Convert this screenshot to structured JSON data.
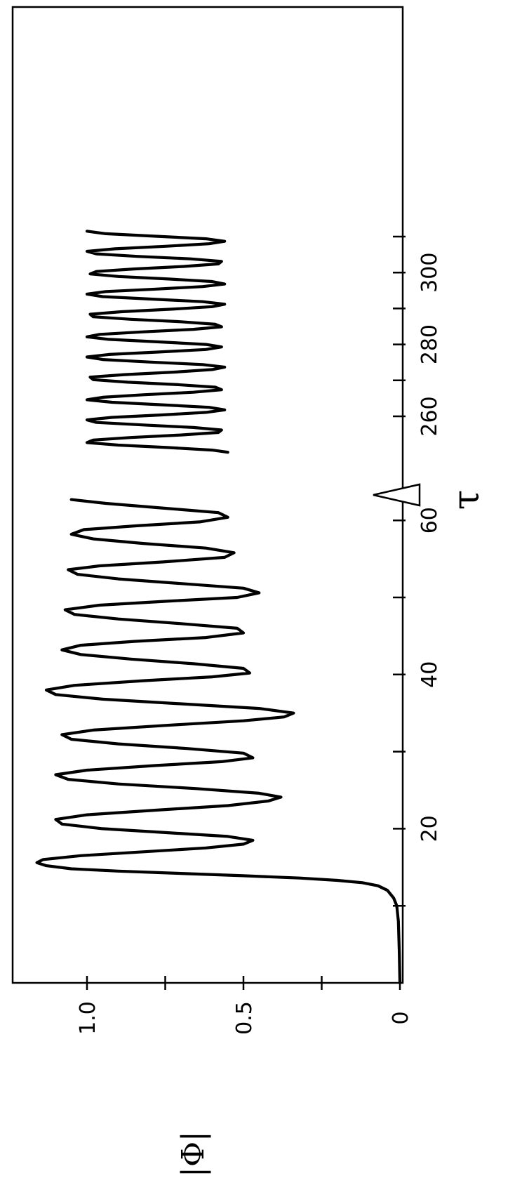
{
  "chart_data": {
    "type": "line",
    "orientation": "rotated-90-ccw",
    "xlabel": "τ",
    "ylabel": "|Φ|",
    "axis_break_marker": "break-triangle",
    "segments": [
      {
        "xlim": [
          0,
          64
        ],
        "ticks": [
          10,
          20,
          30,
          40,
          50,
          60
        ],
        "tick_labels": [
          "20",
          "40",
          "60"
        ],
        "labeled_ticks": [
          20,
          40,
          60
        ]
      },
      {
        "xlim": [
          250,
          312
        ],
        "ticks": [
          260,
          270,
          280,
          290,
          300,
          310
        ],
        "tick_labels": [
          "260",
          "280",
          "300"
        ],
        "labeled_ticks": [
          260,
          280,
          300
        ]
      }
    ],
    "ylim": [
      0,
      1.24
    ],
    "yticks": [
      0,
      0.25,
      0.5,
      0.75,
      1.0
    ],
    "ytick_labels": [
      "0",
      "0.5",
      "1.0"
    ],
    "ylabeled_ticks": [
      0,
      0.5,
      1.0
    ],
    "series": [
      {
        "segment": 0,
        "x": [
          0,
          4,
          8,
          10,
          11,
          12,
          12.6,
          13,
          13.3,
          13.6,
          13.9,
          14.2,
          14.5,
          14.8,
          15.2,
          15.6,
          16.0,
          16.5,
          17.0,
          17.5,
          18.0,
          18.5,
          19.0,
          19.5,
          20.0,
          20.6,
          21.2,
          21.8,
          22.4,
          23.0,
          23.6,
          24.1,
          24.6,
          25.2,
          25.8,
          26.4,
          27.0,
          27.6,
          28.2,
          28.7,
          29.2,
          29.8,
          30.4,
          31.0,
          31.6,
          32.2,
          32.8,
          33.4,
          34.0,
          34.5,
          35.0,
          35.6,
          36.2,
          36.8,
          37.4,
          38.0,
          38.6,
          39.2,
          39.7,
          40.2,
          40.8,
          41.4,
          42.0,
          42.6,
          43.2,
          43.8,
          44.3,
          44.8,
          45.4,
          46.0,
          46.6,
          47.2,
          47.8,
          48.4,
          49.0,
          49.5,
          50.0,
          50.6,
          51.2,
          51.8,
          52.4,
          53.0,
          53.6,
          54.1,
          54.6,
          55.2,
          55.8,
          56.4,
          57.0,
          57.6,
          58.2,
          58.8,
          59.3,
          59.8,
          60.4,
          61.0,
          61.6,
          62.2,
          62.7
        ],
        "y": [
          0.0,
          0.002,
          0.005,
          0.01,
          0.02,
          0.04,
          0.07,
          0.12,
          0.2,
          0.32,
          0.5,
          0.7,
          0.9,
          1.05,
          1.13,
          1.16,
          1.14,
          1.02,
          0.82,
          0.62,
          0.5,
          0.47,
          0.55,
          0.75,
          0.95,
          1.08,
          1.1,
          1.0,
          0.78,
          0.55,
          0.42,
          0.38,
          0.45,
          0.65,
          0.9,
          1.06,
          1.1,
          1.0,
          0.78,
          0.57,
          0.47,
          0.5,
          0.68,
          0.9,
          1.05,
          1.08,
          0.98,
          0.75,
          0.5,
          0.37,
          0.34,
          0.45,
          0.7,
          0.95,
          1.1,
          1.13,
          1.04,
          0.82,
          0.6,
          0.48,
          0.5,
          0.66,
          0.86,
          1.02,
          1.08,
          1.02,
          0.85,
          0.62,
          0.5,
          0.52,
          0.7,
          0.9,
          1.04,
          1.07,
          0.96,
          0.75,
          0.52,
          0.45,
          0.5,
          0.7,
          0.9,
          1.03,
          1.06,
          0.96,
          0.76,
          0.56,
          0.53,
          0.62,
          0.82,
          0.98,
          1.05,
          1.01,
          0.84,
          0.64,
          0.55,
          0.58,
          0.76,
          0.94,
          1.05
        ]
      },
      {
        "segment": 1,
        "x": [
          250.0,
          250.6,
          251.3,
          252.0,
          252.7,
          253.4,
          254.1,
          254.8,
          255.5,
          256.2,
          256.9,
          257.6,
          258.3,
          259.0,
          259.7,
          260.4,
          261.1,
          261.8,
          262.5,
          263.2,
          263.9,
          264.6,
          265.3,
          266.0,
          266.7,
          267.4,
          268.1,
          268.8,
          269.5,
          270.2,
          270.9,
          271.6,
          272.3,
          273.0,
          273.7,
          274.4,
          275.1,
          275.8,
          276.5,
          277.2,
          277.9,
          278.6,
          279.3,
          280.0,
          280.7,
          281.4,
          282.1,
          282.8,
          283.5,
          284.2,
          284.9,
          285.6,
          286.3,
          287.0,
          287.7,
          288.4,
          289.1,
          289.8,
          290.5,
          291.2,
          291.9,
          292.6,
          293.3,
          294.0,
          294.7,
          295.4,
          296.1,
          296.8,
          297.5,
          298.2,
          298.9,
          299.6,
          300.3,
          301.0,
          301.7,
          302.4,
          303.1,
          303.8,
          304.5,
          305.2,
          305.9,
          306.6,
          307.3,
          308.0,
          308.7,
          309.4,
          310.1,
          310.8,
          311.5
        ],
        "y": [
          0.55,
          0.6,
          0.74,
          0.9,
          1.0,
          0.98,
          0.86,
          0.7,
          0.58,
          0.57,
          0.66,
          0.82,
          0.97,
          1.0,
          0.92,
          0.76,
          0.62,
          0.56,
          0.61,
          0.76,
          0.92,
          1.0,
          0.95,
          0.82,
          0.66,
          0.57,
          0.59,
          0.71,
          0.87,
          0.98,
          0.99,
          0.88,
          0.72,
          0.6,
          0.56,
          0.63,
          0.8,
          0.95,
          1.0,
          0.93,
          0.77,
          0.62,
          0.57,
          0.62,
          0.77,
          0.93,
          1.0,
          0.96,
          0.82,
          0.66,
          0.57,
          0.59,
          0.7,
          0.86,
          0.98,
          0.99,
          0.89,
          0.73,
          0.6,
          0.56,
          0.63,
          0.79,
          0.95,
          1.0,
          0.94,
          0.78,
          0.63,
          0.56,
          0.6,
          0.74,
          0.9,
          0.99,
          0.97,
          0.85,
          0.69,
          0.58,
          0.57,
          0.67,
          0.84,
          0.97,
          1.0,
          0.91,
          0.75,
          0.61,
          0.56,
          0.62,
          0.78,
          0.94,
          1.0
        ]
      }
    ],
    "grid": false,
    "legend": "none"
  },
  "colors": {
    "line": "#000000",
    "axis": "#000000",
    "background": "#ffffff"
  }
}
